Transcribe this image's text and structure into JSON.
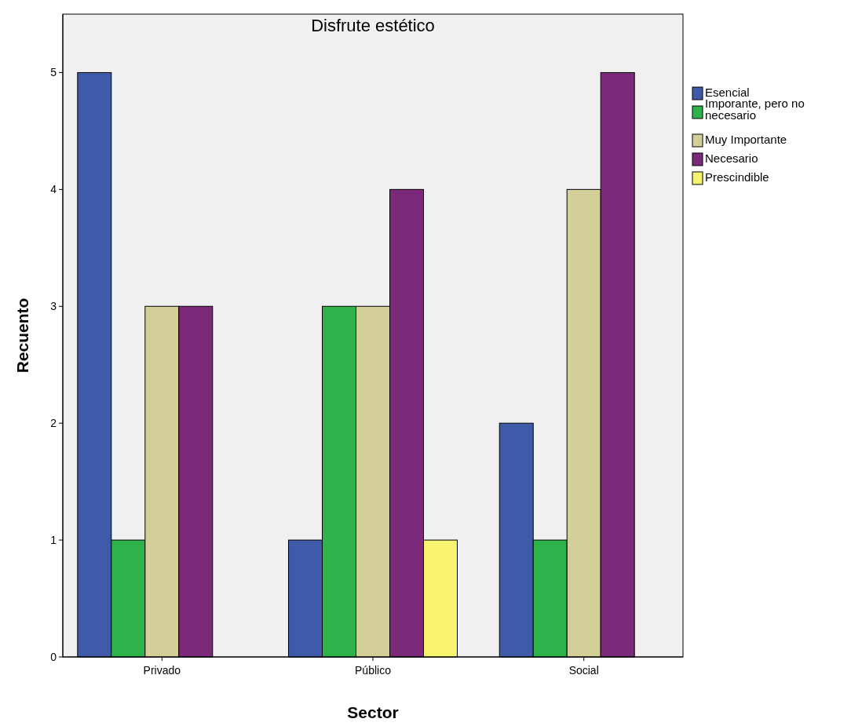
{
  "chart_data": {
    "type": "bar",
    "title": "Disfrute estético",
    "xlabel": "Sector",
    "ylabel": "Recuento",
    "categories": [
      "Privado",
      "Público",
      "Social"
    ],
    "series": [
      {
        "name": "Esencial",
        "color": "#3f5aa8",
        "values": [
          5,
          1,
          2
        ]
      },
      {
        "name": "Imporante, pero no necesario",
        "color": "#2db34a",
        "values": [
          1,
          3,
          1
        ]
      },
      {
        "name": "Muy Importante",
        "color": "#d4cf98",
        "values": [
          3,
          3,
          4
        ]
      },
      {
        "name": "Necesario",
        "color": "#7b2a7a",
        "values": [
          3,
          4,
          5
        ]
      },
      {
        "name": "Prescindible",
        "color": "#f7f36e",
        "values": [
          null,
          1,
          null
        ]
      }
    ],
    "ylim": [
      0,
      5.5
    ],
    "yticks": [
      0,
      1,
      2,
      3,
      4,
      5
    ],
    "grid": false,
    "legend": "right"
  }
}
